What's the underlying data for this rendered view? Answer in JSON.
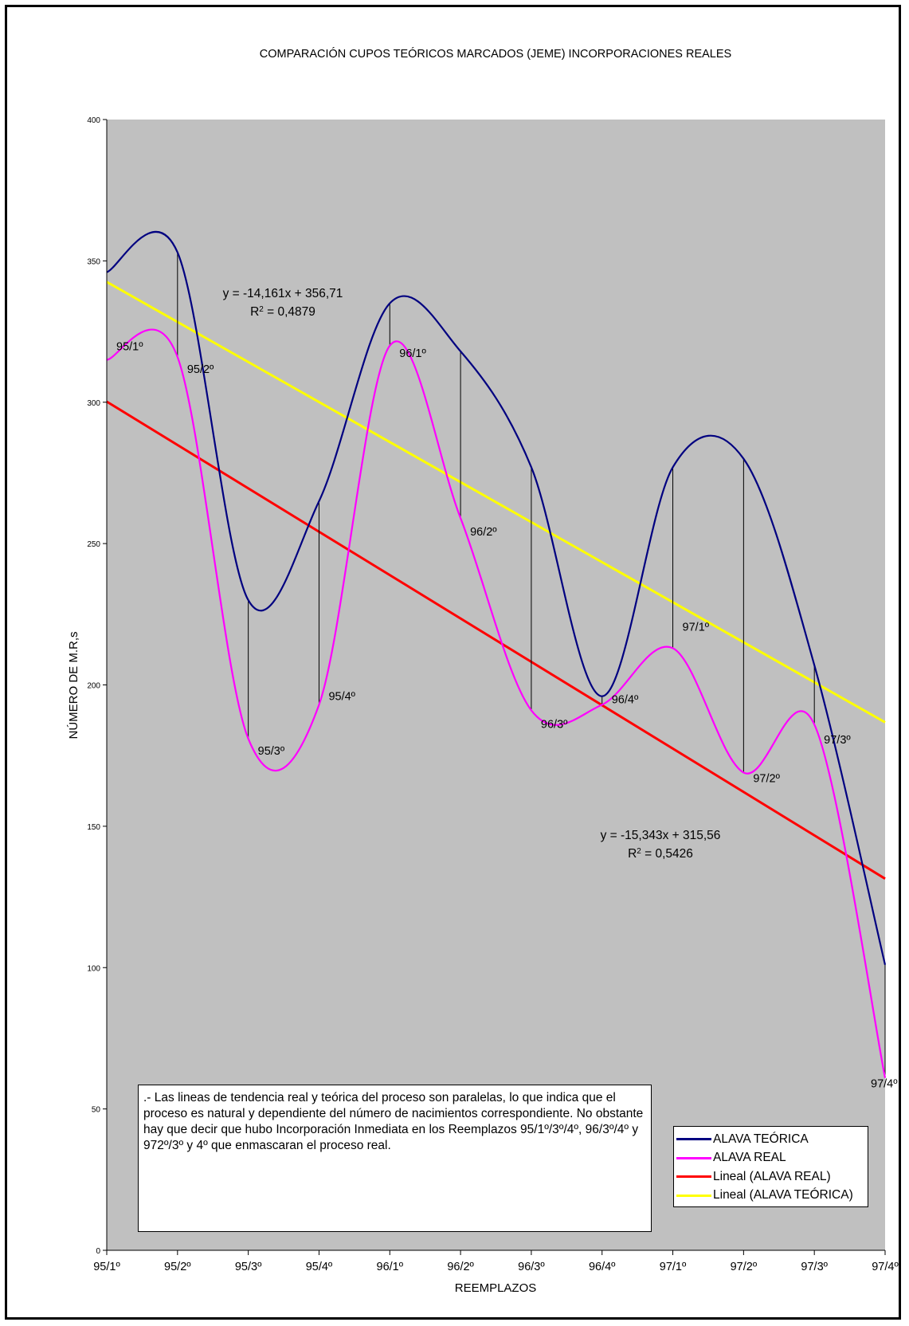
{
  "chart_data": {
    "type": "line",
    "title": "COMPARACIÓN CUPOS TEÓRICOS MARCADOS (JEME) INCORPORACIONES REALES",
    "xlabel": "REEMPLAZOS",
    "ylabel": "NÚMERO DE M.R,s",
    "ylim": [
      0,
      400
    ],
    "yticks": [
      "0",
      "50",
      "100",
      "150",
      "200",
      "250",
      "300",
      "350",
      "400"
    ],
    "grid": false,
    "categories": [
      "95/1º",
      "95/2º",
      "95/3º",
      "95/4º",
      "96/1º",
      "96/2º",
      "96/3º",
      "96/4º",
      "97/1º",
      "97/2º",
      "97/3º",
      "97/4º"
    ],
    "series": [
      {
        "name": "ALAVA TEÓRICA",
        "color": "#000080",
        "values": [
          346,
          353,
          230,
          265,
          335,
          318,
          277,
          196,
          277,
          280,
          207,
          101
        ]
      },
      {
        "name": "ALAVA REAL",
        "color": "#ff00ff",
        "values": [
          315,
          316,
          181,
          193,
          320,
          259,
          191,
          193,
          213,
          169,
          186,
          61
        ]
      },
      {
        "name": "Lineal (ALAVA REAL)",
        "color": "#ff0000",
        "trend": {
          "slope": -15.343,
          "intercept": 315.56
        }
      },
      {
        "name": "Lineal (ALAVA TEÓRICA)",
        "color": "#ffff00",
        "trend": {
          "slope": -14.161,
          "intercept": 356.71
        }
      }
    ],
    "point_labels": [
      "95/1º",
      "95/2º",
      "95/3º",
      "95/4º",
      "96/1º",
      "96/2º",
      "96/3º",
      "96/4º",
      "97/1º",
      "97/2º",
      "97/3º",
      "97/4º"
    ],
    "annotations": [
      {
        "eq": "y = -14,161x + 356,71",
        "r2_prefix": "R",
        "r2_sup": "2",
        "r2_value": " = 0,4879"
      },
      {
        "eq": "y = -15,343x + 315,56",
        "r2_prefix": "R",
        "r2_sup": "2",
        "r2_value": " = 0,5426"
      }
    ],
    "legend_position": "bottom-right",
    "background": "#c0c0c0"
  },
  "note": ".- Las lineas de tendencia real y teórica del proceso son paralelas, lo que indica  que el proceso es natural y dependiente del número de nacimientos correspondiente. No obstante hay que decir que hubo Incorporación Inmediata en los Reemplazos 95/1º/3º/4º, 96/3º/4º y 972º/3º y 4º que enmascaran el proceso real."
}
